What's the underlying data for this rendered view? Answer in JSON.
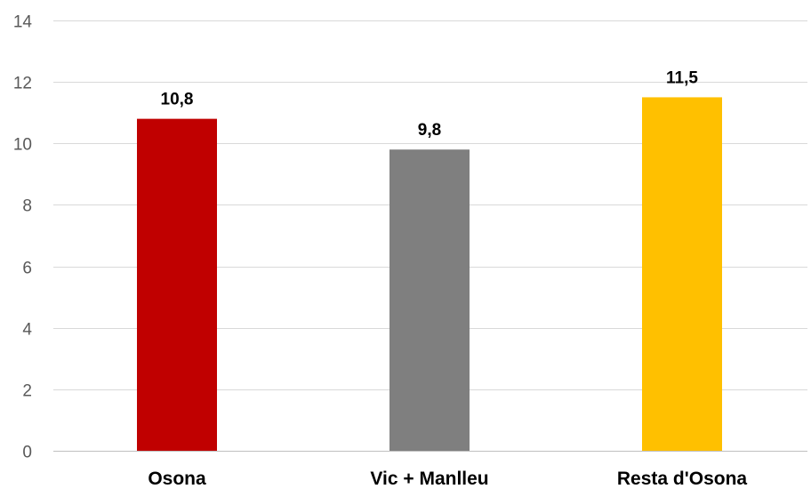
{
  "chart_data": {
    "type": "bar",
    "categories": [
      "Osona",
      "Vic + Manlleu",
      "Resta d'Osona"
    ],
    "values": [
      10.8,
      9.8,
      11.5
    ],
    "data_labels": [
      "10,8",
      "9,8",
      "11,5"
    ],
    "colors": [
      "#c00000",
      "#7f7f7f",
      "#ffc000"
    ],
    "ylim": [
      0,
      14
    ],
    "yticks": [
      0,
      2,
      4,
      6,
      8,
      10,
      12,
      14
    ],
    "ytick_labels": [
      "0",
      "2",
      "4",
      "6",
      "8",
      "10",
      "12",
      "14"
    ],
    "title": "",
    "xlabel": "",
    "ylabel": "",
    "grid": true,
    "legend": "none"
  }
}
